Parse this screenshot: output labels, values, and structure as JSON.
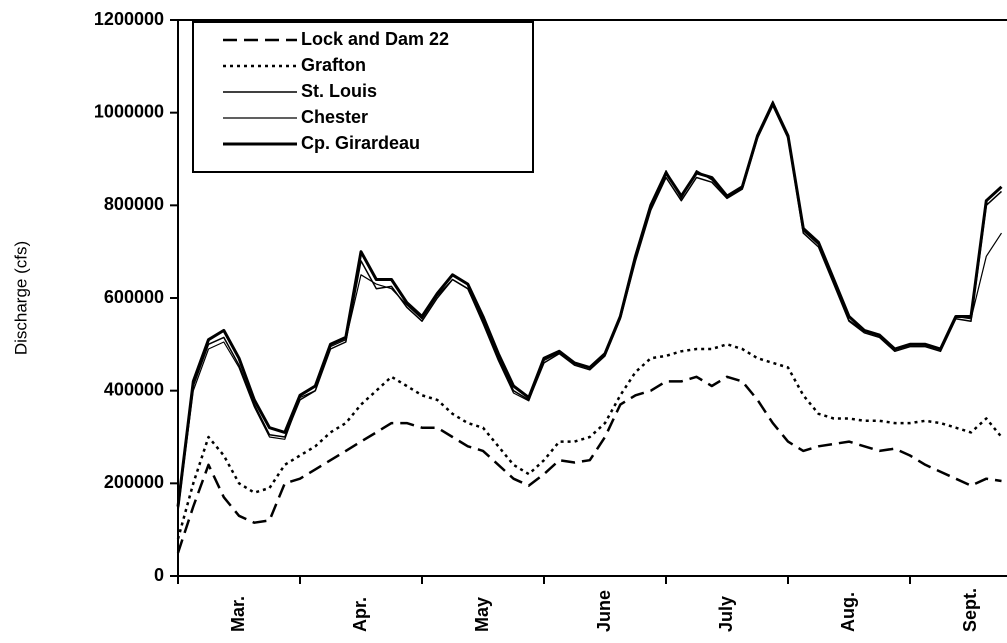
{
  "chart_data": {
    "type": "line",
    "ylabel": "Discharge (cfs)",
    "categories": [
      null,
      null,
      null,
      null,
      "Mar.",
      null,
      null,
      null,
      null,
      null,
      null,
      null,
      "Apr.",
      null,
      null,
      null,
      null,
      null,
      null,
      null,
      "May",
      null,
      null,
      null,
      null,
      null,
      null,
      null,
      "June",
      null,
      null,
      null,
      null,
      null,
      null,
      null,
      "July",
      null,
      null,
      null,
      null,
      null,
      null,
      null,
      "Aug.",
      null,
      null,
      null,
      null,
      null,
      null,
      null,
      "Sept.",
      null,
      null
    ],
    "ylim": [
      0,
      1200000
    ],
    "yticks": [
      0,
      200000,
      400000,
      600000,
      800000,
      1000000,
      1200000
    ],
    "grid": false,
    "legend": "upper left",
    "series": [
      {
        "name": "Lock and Dam 22",
        "color": "#000000",
        "style": "dashed",
        "width": 2.5,
        "values": [
          50000,
          150000,
          240000,
          170000,
          130000,
          115000,
          120000,
          200000,
          210000,
          230000,
          250000,
          270000,
          290000,
          310000,
          330000,
          330000,
          320000,
          320000,
          300000,
          280000,
          270000,
          240000,
          210000,
          195000,
          220000,
          250000,
          245000,
          250000,
          300000,
          370000,
          390000,
          400000,
          420000,
          420000,
          430000,
          410000,
          430000,
          420000,
          380000,
          330000,
          290000,
          270000,
          280000,
          285000,
          290000,
          280000,
          270000,
          275000,
          260000,
          240000,
          225000,
          210000,
          195000,
          210000,
          205000
        ]
      },
      {
        "name": "Grafton",
        "color": "#000000",
        "style": "dotted",
        "width": 2.5,
        "values": [
          80000,
          200000,
          300000,
          260000,
          200000,
          180000,
          190000,
          240000,
          260000,
          280000,
          310000,
          330000,
          370000,
          400000,
          430000,
          410000,
          390000,
          380000,
          350000,
          330000,
          320000,
          280000,
          240000,
          220000,
          250000,
          290000,
          290000,
          300000,
          330000,
          390000,
          440000,
          470000,
          475000,
          485000,
          490000,
          490000,
          500000,
          490000,
          470000,
          460000,
          450000,
          390000,
          350000,
          340000,
          340000,
          335000,
          335000,
          330000,
          330000,
          335000,
          330000,
          320000,
          310000,
          340000,
          300000
        ]
      },
      {
        "name": "St. Louis",
        "color": "#000000",
        "style": "solid",
        "width": 1.5,
        "values": [
          140000,
          410000,
          500000,
          515000,
          455000,
          370000,
          305000,
          300000,
          380000,
          400000,
          490000,
          505000,
          680000,
          620000,
          625000,
          580000,
          550000,
          600000,
          640000,
          620000,
          550000,
          470000,
          400000,
          380000,
          460000,
          480000,
          455000,
          445000,
          475000,
          555000,
          680000,
          790000,
          860000,
          810000,
          860000,
          850000,
          815000,
          835000,
          945000,
          1015000,
          945000,
          740000,
          710000,
          630000,
          550000,
          525000,
          515000,
          485000,
          495000,
          495000,
          485000,
          555000,
          550000,
          800000,
          830000
        ]
      },
      {
        "name": "Chester",
        "color": "#000000",
        "style": "solid",
        "width": 1.2,
        "values": [
          145000,
          400000,
          490000,
          505000,
          450000,
          365000,
          300000,
          295000,
          385000,
          400000,
          495000,
          510000,
          650000,
          630000,
          620000,
          585000,
          555000,
          605000,
          640000,
          620000,
          545000,
          465000,
          395000,
          378000,
          465000,
          482000,
          458000,
          448000,
          478000,
          558000,
          685000,
          795000,
          875000,
          815000,
          875000,
          855000,
          818000,
          838000,
          948000,
          1025000,
          950000,
          745000,
          715000,
          635000,
          552000,
          528000,
          518000,
          488000,
          498000,
          498000,
          488000,
          560000,
          555000,
          690000,
          740000
        ]
      },
      {
        "name": "Cp. Girardeau",
        "color": "#000000",
        "style": "solid",
        "width": 3,
        "values": [
          150000,
          420000,
          510000,
          530000,
          470000,
          380000,
          320000,
          310000,
          390000,
          410000,
          500000,
          515000,
          700000,
          640000,
          640000,
          590000,
          560000,
          610000,
          650000,
          630000,
          560000,
          480000,
          410000,
          385000,
          470000,
          485000,
          460000,
          450000,
          480000,
          560000,
          690000,
          800000,
          870000,
          820000,
          870000,
          860000,
          820000,
          840000,
          950000,
          1020000,
          950000,
          750000,
          720000,
          640000,
          560000,
          530000,
          520000,
          490000,
          500000,
          500000,
          490000,
          560000,
          560000,
          810000,
          840000
        ]
      }
    ]
  }
}
